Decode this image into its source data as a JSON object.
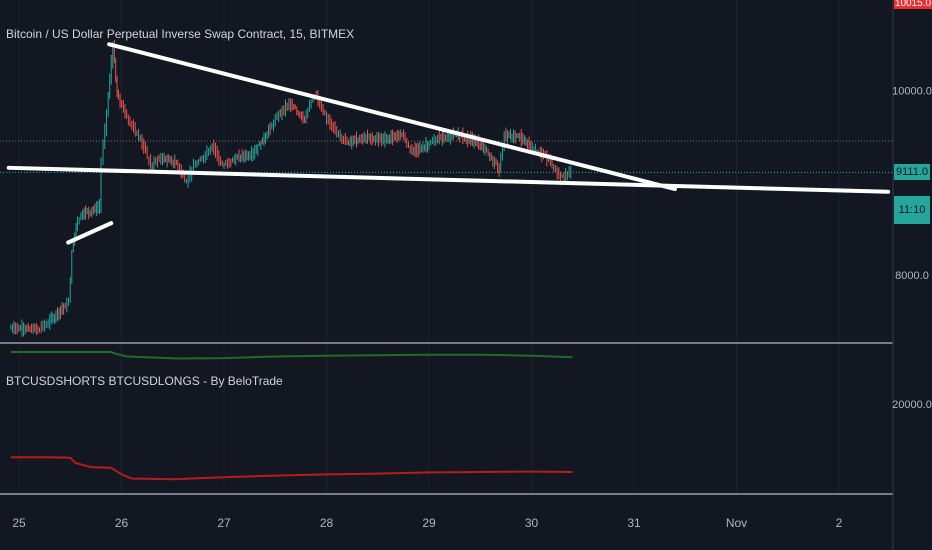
{
  "chart_data": [
    {
      "type": "line",
      "title": "Bitcoin / US Dollar Perpetual Inverse Swap Contract, 15, BITMEX",
      "x_ticks": [
        "25",
        "26",
        "27",
        "28",
        "29",
        "30",
        "31",
        "Nov",
        "2"
      ],
      "y_ticks": [
        10000.0,
        8000.0
      ],
      "y_tick_labels": [
        "10000.0",
        "8000.0"
      ],
      "ylim": [
        7260,
        10980
      ],
      "last_price": "9111.0",
      "countdown": "11:10",
      "high_label": "10015.0",
      "series": [
        {
          "values": [
            {
              "x": 24.92,
              "y": 7430
            },
            {
              "x": 25.2,
              "y": 7410
            },
            {
              "x": 25.3,
              "y": 7480
            },
            {
              "x": 25.45,
              "y": 7650
            },
            {
              "x": 25.5,
              "y": 7700
            },
            {
              "x": 25.53,
              "y": 8250
            },
            {
              "x": 25.57,
              "y": 8550
            },
            {
              "x": 25.62,
              "y": 8660
            },
            {
              "x": 25.8,
              "y": 8730
            },
            {
              "x": 25.82,
              "y": 9220
            },
            {
              "x": 25.87,
              "y": 9750
            },
            {
              "x": 25.93,
              "y": 10490
            },
            {
              "x": 25.97,
              "y": 9960
            },
            {
              "x": 26.05,
              "y": 9750
            },
            {
              "x": 26.15,
              "y": 9560
            },
            {
              "x": 26.2,
              "y": 9480
            },
            {
              "x": 26.3,
              "y": 9180
            },
            {
              "x": 26.4,
              "y": 9270
            },
            {
              "x": 26.55,
              "y": 9210
            },
            {
              "x": 26.65,
              "y": 9010
            },
            {
              "x": 26.72,
              "y": 9180
            },
            {
              "x": 26.8,
              "y": 9260
            },
            {
              "x": 26.9,
              "y": 9410
            },
            {
              "x": 27.0,
              "y": 9180
            },
            {
              "x": 27.1,
              "y": 9250
            },
            {
              "x": 27.3,
              "y": 9320
            },
            {
              "x": 27.45,
              "y": 9560
            },
            {
              "x": 27.55,
              "y": 9740
            },
            {
              "x": 27.65,
              "y": 9850
            },
            {
              "x": 27.8,
              "y": 9700
            },
            {
              "x": 27.9,
              "y": 9960
            },
            {
              "x": 28.0,
              "y": 9720
            },
            {
              "x": 28.1,
              "y": 9560
            },
            {
              "x": 28.2,
              "y": 9450
            },
            {
              "x": 28.4,
              "y": 9480
            },
            {
              "x": 28.6,
              "y": 9470
            },
            {
              "x": 28.75,
              "y": 9530
            },
            {
              "x": 28.85,
              "y": 9330
            },
            {
              "x": 29.0,
              "y": 9410
            },
            {
              "x": 29.1,
              "y": 9480
            },
            {
              "x": 29.3,
              "y": 9520
            },
            {
              "x": 29.5,
              "y": 9430
            },
            {
              "x": 29.7,
              "y": 9150
            },
            {
              "x": 29.75,
              "y": 9510
            },
            {
              "x": 29.9,
              "y": 9490
            },
            {
              "x": 30.1,
              "y": 9320
            },
            {
              "x": 30.2,
              "y": 9230
            },
            {
              "x": 30.3,
              "y": 9050
            },
            {
              "x": 30.35,
              "y": 9080
            },
            {
              "x": 30.4,
              "y": 9111
            }
          ]
        }
      ],
      "trendlines": [
        {
          "from": {
            "x": 25.88,
            "y": 10500
          },
          "to": {
            "x": 31.4,
            "y": 8930
          }
        },
        {
          "from": {
            "x": 24.9,
            "y": 9160
          },
          "to": {
            "x": 33.48,
            "y": 8900
          }
        },
        {
          "from": {
            "x": 25.48,
            "y": 8350
          },
          "to": {
            "x": 25.9,
            "y": 8560
          }
        }
      ],
      "horizontal_lines": [
        {
          "y": 9450,
          "style": "dotted",
          "color": "#787b86"
        },
        {
          "y": 9111,
          "style": "dotted",
          "color": "#26a69a"
        }
      ],
      "colors": {
        "up": "#26a69a",
        "down": "#ef5350",
        "trendline": "#ffffff",
        "background": "#131722",
        "high_label_bg": "#ef2d2d"
      }
    },
    {
      "type": "line",
      "title": "BTCUSDSHORTS BTCUSDLONGS - By BeloTrade",
      "y_ticks": [
        20000.0
      ],
      "y_tick_labels": [
        "20000.0"
      ],
      "ylim": [
        9000,
        27500
      ],
      "series": [
        {
          "color": "#1f6b2a",
          "values": [
            {
              "x": 24.92,
              "y": 26400
            },
            {
              "x": 25.9,
              "y": 26400
            },
            {
              "x": 25.95,
              "y": 26150
            },
            {
              "x": 26.05,
              "y": 25850
            },
            {
              "x": 26.55,
              "y": 25600
            },
            {
              "x": 27.0,
              "y": 25650
            },
            {
              "x": 27.5,
              "y": 25850
            },
            {
              "x": 28.0,
              "y": 25950
            },
            {
              "x": 28.5,
              "y": 26000
            },
            {
              "x": 29.0,
              "y": 26050
            },
            {
              "x": 29.5,
              "y": 26050
            },
            {
              "x": 30.0,
              "y": 25950
            },
            {
              "x": 30.4,
              "y": 25750
            }
          ]
        },
        {
          "color": "#b71c1c",
          "values": [
            {
              "x": 24.92,
              "y": 13500
            },
            {
              "x": 25.3,
              "y": 13500
            },
            {
              "x": 25.5,
              "y": 13450
            },
            {
              "x": 25.55,
              "y": 12800
            },
            {
              "x": 25.7,
              "y": 12300
            },
            {
              "x": 25.9,
              "y": 12200
            },
            {
              "x": 26.0,
              "y": 11400
            },
            {
              "x": 26.1,
              "y": 10900
            },
            {
              "x": 26.5,
              "y": 10800
            },
            {
              "x": 27.0,
              "y": 11050
            },
            {
              "x": 27.5,
              "y": 11250
            },
            {
              "x": 28.0,
              "y": 11400
            },
            {
              "x": 28.5,
              "y": 11500
            },
            {
              "x": 29.0,
              "y": 11650
            },
            {
              "x": 29.5,
              "y": 11700
            },
            {
              "x": 30.0,
              "y": 11750
            },
            {
              "x": 30.4,
              "y": 11700
            }
          ]
        }
      ]
    }
  ]
}
